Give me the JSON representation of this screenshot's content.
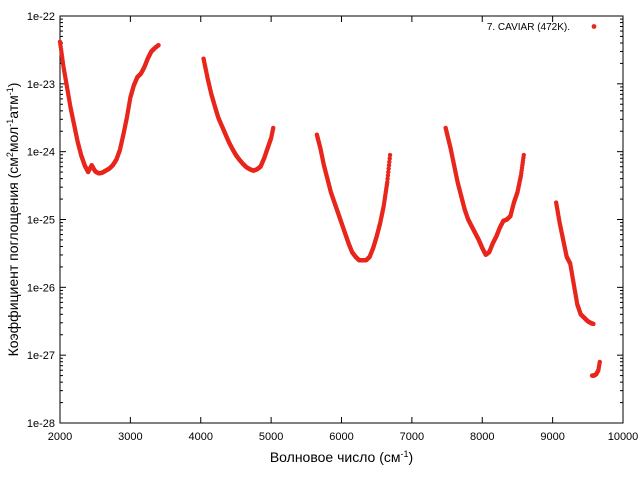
{
  "chart_data": {
    "type": "scatter",
    "title": "",
    "xlabel": {
      "main": "Волновое число (см",
      "sup": "-1",
      "tail": ")"
    },
    "ylabel": {
      "parts": [
        {
          "text": "Коэффициент поглощения (см",
          "sup": false
        },
        {
          "text": "2",
          "sup": true
        },
        {
          "text": "мол",
          "sup": false
        },
        {
          "text": "-1",
          "sup": true
        },
        {
          "text": "атм",
          "sup": false
        },
        {
          "text": "-1",
          "sup": true
        },
        {
          "text": ")",
          "sup": false
        }
      ]
    },
    "xlim": [
      2000,
      10000
    ],
    "ylim_log10": [
      -28,
      -22
    ],
    "yscale": "log",
    "grid": false,
    "legend_position": "top-right",
    "x_ticks": [
      2000,
      3000,
      4000,
      5000,
      6000,
      7000,
      8000,
      9000,
      10000
    ],
    "x_tick_labels": [
      "2000",
      "3000",
      "4000",
      "5000",
      "6000",
      "7000",
      "8000",
      "9000",
      "10000"
    ],
    "y_ticks_log10": [
      -28,
      -27,
      -26,
      -25,
      -24,
      -23,
      -22
    ],
    "y_tick_labels": [
      "1e-28",
      "1e-27",
      "1e-26",
      "1e-25",
      "1e-24",
      "1e-23",
      "1e-22"
    ],
    "series": [
      {
        "name": "7. CAVIAR (472K).",
        "color": "#e8261c",
        "segments": [
          [
            [
              2000,
              -22.38
            ],
            [
              2050,
              -22.75
            ],
            [
              2100,
              -23.05
            ],
            [
              2150,
              -23.35
            ],
            [
              2200,
              -23.6
            ],
            [
              2250,
              -23.85
            ],
            [
              2300,
              -24.05
            ],
            [
              2350,
              -24.2
            ],
            [
              2400,
              -24.3
            ],
            [
              2450,
              -24.2
            ],
            [
              2500,
              -24.29
            ],
            [
              2550,
              -24.32
            ],
            [
              2600,
              -24.31
            ],
            [
              2650,
              -24.28
            ],
            [
              2700,
              -24.25
            ],
            [
              2750,
              -24.2
            ],
            [
              2800,
              -24.12
            ],
            [
              2850,
              -23.98
            ],
            [
              2900,
              -23.75
            ],
            [
              2950,
              -23.5
            ],
            [
              3000,
              -23.2
            ],
            [
              3050,
              -23.02
            ],
            [
              3100,
              -22.9
            ],
            [
              3150,
              -22.85
            ],
            [
              3200,
              -22.75
            ],
            [
              3250,
              -22.62
            ],
            [
              3300,
              -22.52
            ],
            [
              3350,
              -22.47
            ],
            [
              3400,
              -22.43
            ]
          ],
          [
            [
              4040,
              -22.63
            ],
            [
              4100,
              -22.93
            ],
            [
              4150,
              -23.15
            ],
            [
              4200,
              -23.33
            ],
            [
              4250,
              -23.5
            ],
            [
              4300,
              -23.62
            ],
            [
              4350,
              -23.74
            ],
            [
              4400,
              -23.86
            ],
            [
              4450,
              -23.96
            ],
            [
              4500,
              -24.05
            ],
            [
              4550,
              -24.12
            ],
            [
              4600,
              -24.18
            ],
            [
              4650,
              -24.23
            ],
            [
              4700,
              -24.26
            ],
            [
              4750,
              -24.28
            ],
            [
              4800,
              -24.26
            ],
            [
              4850,
              -24.22
            ],
            [
              4900,
              -24.1
            ],
            [
              4950,
              -23.95
            ],
            [
              5000,
              -23.8
            ],
            [
              5030,
              -23.65
            ]
          ],
          [
            [
              5650,
              -23.75
            ],
            [
              5700,
              -23.95
            ],
            [
              5750,
              -24.2
            ],
            [
              5800,
              -24.4
            ],
            [
              5850,
              -24.6
            ],
            [
              5900,
              -24.75
            ],
            [
              5950,
              -24.9
            ],
            [
              6000,
              -25.05
            ],
            [
              6050,
              -25.2
            ],
            [
              6100,
              -25.35
            ],
            [
              6150,
              -25.48
            ],
            [
              6200,
              -25.55
            ],
            [
              6250,
              -25.6
            ],
            [
              6300,
              -25.6
            ],
            [
              6350,
              -25.6
            ],
            [
              6400,
              -25.55
            ],
            [
              6450,
              -25.42
            ],
            [
              6500,
              -25.25
            ],
            [
              6550,
              -25.05
            ],
            [
              6600,
              -24.8
            ],
            [
              6650,
              -24.45
            ],
            [
              6690,
              -24.05
            ]
          ],
          [
            [
              7480,
              -23.65
            ],
            [
              7550,
              -23.95
            ],
            [
              7600,
              -24.2
            ],
            [
              7650,
              -24.45
            ],
            [
              7700,
              -24.65
            ],
            [
              7750,
              -24.85
            ],
            [
              7800,
              -25.0
            ],
            [
              7850,
              -25.1
            ],
            [
              7900,
              -25.2
            ],
            [
              7950,
              -25.3
            ],
            [
              8000,
              -25.42
            ],
            [
              8050,
              -25.52
            ],
            [
              8100,
              -25.48
            ],
            [
              8150,
              -25.35
            ],
            [
              8200,
              -25.25
            ],
            [
              8250,
              -25.12
            ],
            [
              8300,
              -25.02
            ],
            [
              8350,
              -25.0
            ],
            [
              8400,
              -24.95
            ],
            [
              8450,
              -24.75
            ],
            [
              8500,
              -24.6
            ],
            [
              8550,
              -24.35
            ],
            [
              8590,
              -24.05
            ]
          ],
          [
            [
              9050,
              -24.75
            ],
            [
              9100,
              -25.05
            ],
            [
              9150,
              -25.3
            ],
            [
              9200,
              -25.55
            ],
            [
              9250,
              -25.65
            ],
            [
              9300,
              -25.95
            ],
            [
              9350,
              -26.25
            ],
            [
              9400,
              -26.4
            ],
            [
              9450,
              -26.45
            ],
            [
              9500,
              -26.5
            ],
            [
              9550,
              -26.53
            ],
            [
              9580,
              -26.54
            ]
          ],
          [
            [
              9560,
              -27.3
            ],
            [
              9590,
              -27.3
            ],
            [
              9620,
              -27.28
            ],
            [
              9650,
              -27.22
            ],
            [
              9670,
              -27.1
            ]
          ]
        ]
      }
    ]
  }
}
